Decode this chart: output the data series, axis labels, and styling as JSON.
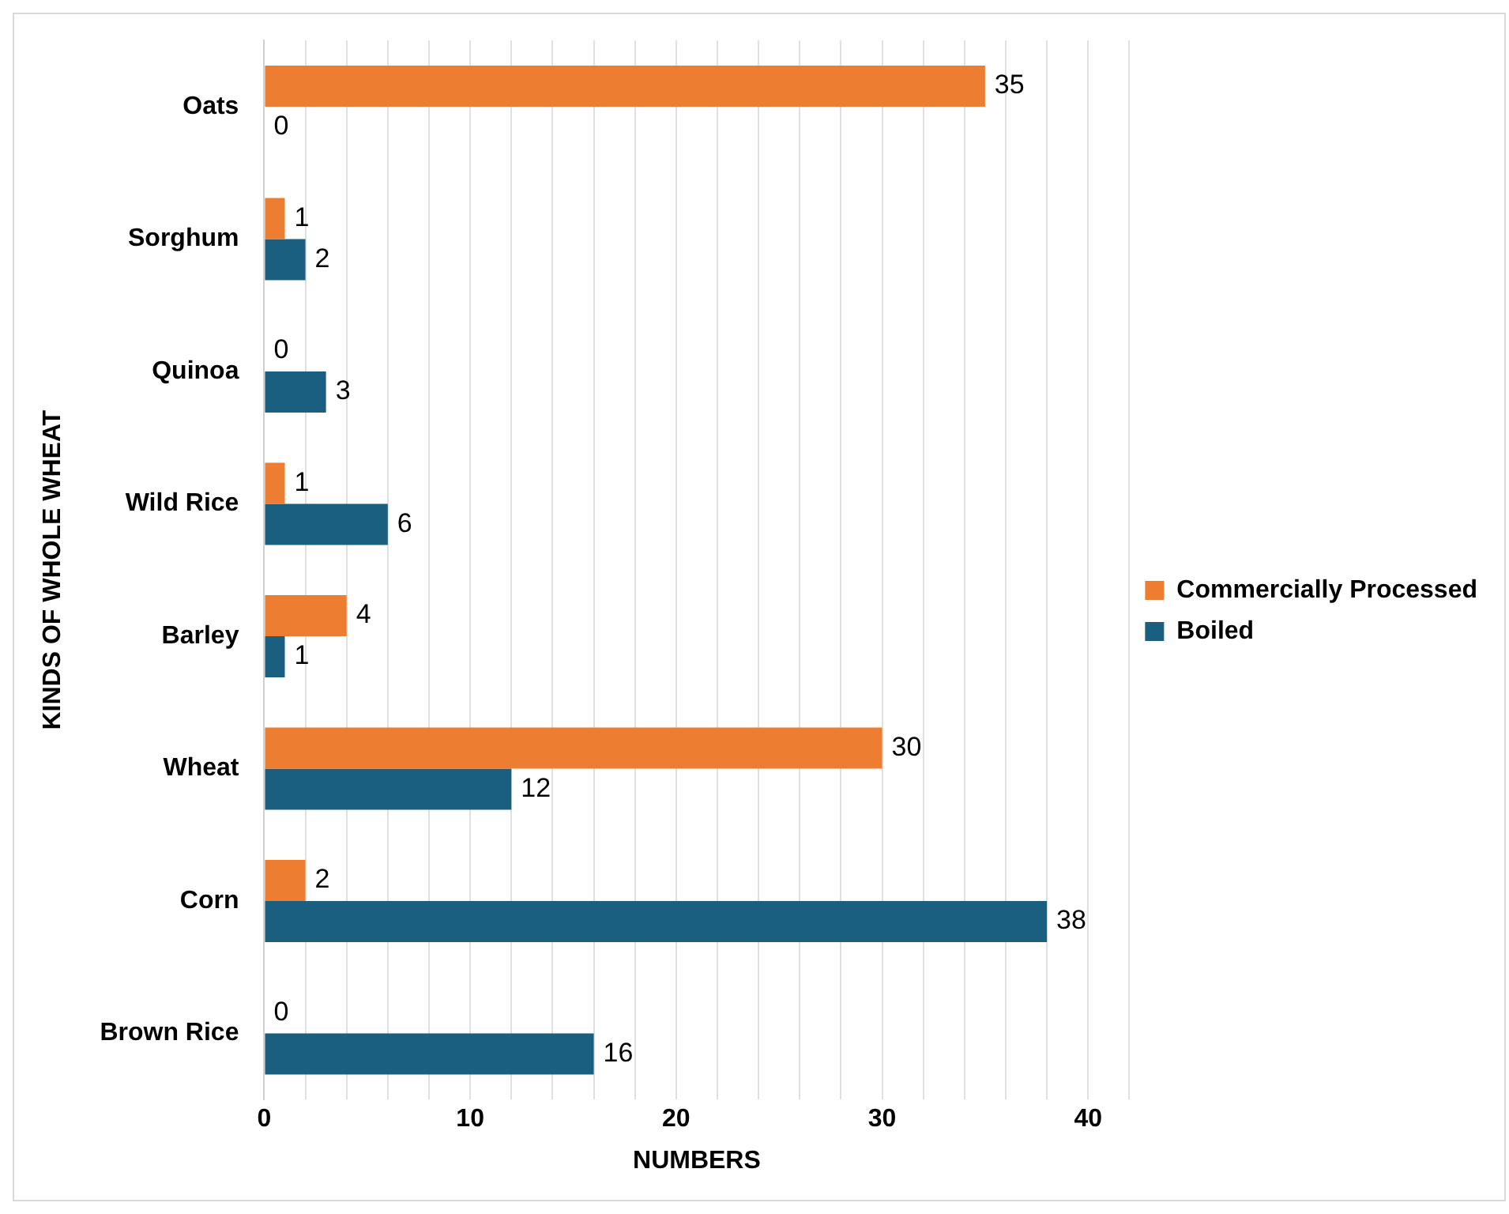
{
  "chart_data": {
    "type": "bar",
    "orientation": "horizontal",
    "xlabel": "NUMBERS",
    "ylabel": "KINDS OF WHOLE WHEAT",
    "categories": [
      "Oats",
      "Sorghum",
      "Quinoa",
      "Wild Rice",
      "Barley",
      "Wheat",
      "Corn",
      "Brown Rice"
    ],
    "series": [
      {
        "name": "Commercially Processed",
        "color": "#ed7d31",
        "values": [
          35,
          1,
          0,
          1,
          4,
          30,
          2,
          0
        ]
      },
      {
        "name": "Boiled",
        "color": "#1a5e80",
        "values": [
          0,
          2,
          3,
          6,
          1,
          12,
          38,
          16
        ]
      }
    ],
    "xlim": [
      0,
      42
    ],
    "xticks": [
      0,
      {
        "value": 2,
        "label": null
      },
      {
        "value": 4,
        "label": null
      },
      {
        "value": 6,
        "label": null
      },
      {
        "value": 8,
        "label": null
      },
      10,
      {
        "value": 12,
        "label": null
      },
      {
        "value": 14,
        "label": null
      },
      {
        "value": 16,
        "label": null
      },
      {
        "value": 18,
        "label": null
      },
      20,
      {
        "value": 22,
        "label": null
      },
      {
        "value": 24,
        "label": null
      },
      {
        "value": 26,
        "label": null
      },
      {
        "value": 28,
        "label": null
      },
      30,
      {
        "value": 32,
        "label": null
      },
      {
        "value": 34,
        "label": null
      },
      {
        "value": 36,
        "label": null
      },
      {
        "value": 38,
        "label": null
      },
      40,
      {
        "value": 42,
        "label": null
      }
    ],
    "grid": "x",
    "legend": "right",
    "data_labels": true
  }
}
